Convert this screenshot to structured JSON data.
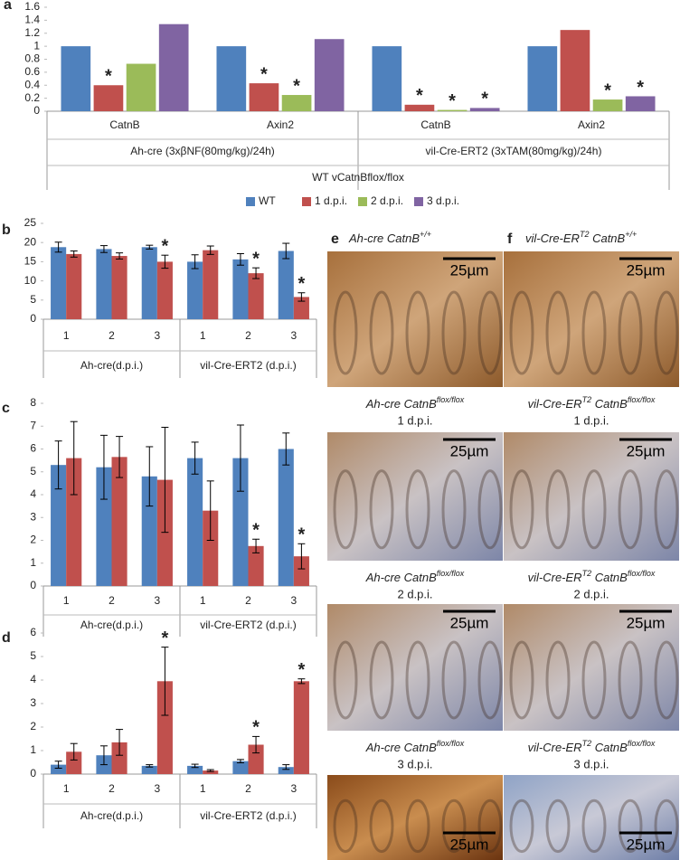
{
  "chart_data": [
    {
      "type": "bar",
      "panel": "a",
      "categories": [
        "CatnB",
        "Axin2",
        "CatnB",
        "Axin2"
      ],
      "group_labels": [
        "Ah-cre (3xβNF(80mg/kg)/24h)",
        "vil-Cre-ERT2 (3xTAM(80mg/kg)/24h)"
      ],
      "outer_label": "WT vCatnBflox/flox",
      "legend": "bottom",
      "ylim": [
        0,
        1.6
      ],
      "yticks": [
        0,
        0.2,
        0.4,
        0.6,
        0.8,
        1,
        1.2,
        1.4,
        1.6
      ],
      "series": [
        {
          "name": "WT",
          "color": "#4f81bd",
          "values": [
            1,
            1,
            1,
            1
          ],
          "significance": [
            null,
            null,
            null,
            null
          ]
        },
        {
          "name": "1 d.p.i.",
          "color": "#c0504d",
          "values": [
            0.4,
            0.43,
            0.1,
            1.25
          ],
          "significance": [
            "*",
            "*",
            "*",
            null
          ]
        },
        {
          "name": "2 d.p.i.",
          "color": "#9bbb59",
          "values": [
            0.73,
            0.25,
            0.02,
            0.18
          ],
          "significance": [
            null,
            "*",
            "*",
            "*"
          ]
        },
        {
          "name": "3 d.p.i.",
          "color": "#8064a2",
          "values": [
            1.34,
            1.11,
            0.05,
            0.23
          ],
          "significance": [
            null,
            null,
            "*",
            "*"
          ]
        }
      ]
    },
    {
      "type": "bar",
      "panel": "b",
      "categories": [
        "1",
        "2",
        "3",
        "1",
        "2",
        "3"
      ],
      "group_labels": [
        "Ah-cre(d.p.i.)",
        "vil-Cre-ERT2 (d.p.i.)"
      ],
      "ylim": [
        0,
        25
      ],
      "yticks": [
        0,
        5,
        10,
        15,
        20,
        25
      ],
      "series": [
        {
          "color": "#4f81bd",
          "values": [
            18.8,
            18.3,
            18.8,
            15,
            15.6,
            17.8
          ],
          "errors": [
            1.3,
            0.9,
            0.5,
            1.8,
            1.5,
            2
          ],
          "significance": [
            null,
            null,
            null,
            null,
            null,
            null
          ]
        },
        {
          "color": "#c0504d",
          "values": [
            17,
            16.5,
            15,
            18,
            12,
            5.8
          ],
          "errors": [
            0.8,
            0.8,
            1.7,
            1.1,
            1.4,
            1.1
          ],
          "significance": [
            null,
            null,
            "*",
            null,
            "*",
            "*"
          ]
        }
      ]
    },
    {
      "type": "bar",
      "panel": "c",
      "categories": [
        "1",
        "2",
        "3",
        "1",
        "2",
        "3"
      ],
      "group_labels": [
        "Ah-cre(d.p.i.)",
        "vil-Cre-ERT2 (d.p.i.)"
      ],
      "ylim": [
        0,
        8
      ],
      "yticks": [
        0,
        1,
        2,
        3,
        4,
        5,
        6,
        7,
        8
      ],
      "series": [
        {
          "color": "#4f81bd",
          "values": [
            5.3,
            5.2,
            4.8,
            5.6,
            5.6,
            6
          ],
          "errors": [
            1.05,
            1.4,
            1.3,
            0.7,
            1.45,
            0.7
          ],
          "significance": [
            null,
            null,
            null,
            null,
            null,
            null
          ]
        },
        {
          "color": "#c0504d",
          "values": [
            5.6,
            5.65,
            4.65,
            3.3,
            1.75,
            1.3
          ],
          "errors": [
            1.6,
            0.9,
            2.3,
            1.3,
            0.3,
            0.55
          ],
          "significance": [
            null,
            null,
            null,
            null,
            "*",
            "*"
          ]
        }
      ]
    },
    {
      "type": "bar",
      "panel": "d",
      "categories": [
        "1",
        "2",
        "3",
        "1",
        "2",
        "3"
      ],
      "group_labels": [
        "Ah-cre(d.p.i.)",
        "vil-Cre-ERT2 (d.p.i.)"
      ],
      "ylim": [
        0,
        6
      ],
      "yticks": [
        0,
        1,
        2,
        3,
        4,
        5,
        6
      ],
      "series": [
        {
          "color": "#4f81bd",
          "values": [
            0.4,
            0.8,
            0.35,
            0.35,
            0.55,
            0.3
          ],
          "errors": [
            0.15,
            0.4,
            0.05,
            0.07,
            0.07,
            0.1
          ],
          "significance": [
            null,
            null,
            null,
            null,
            null,
            null
          ]
        },
        {
          "color": "#c0504d",
          "values": [
            0.95,
            1.35,
            3.95,
            0.15,
            1.25,
            3.95
          ],
          "errors": [
            0.35,
            0.55,
            1.45,
            0.04,
            0.35,
            0.1
          ],
          "significance": [
            null,
            null,
            "*",
            null,
            "*",
            "*"
          ]
        }
      ]
    }
  ],
  "micrographs": {
    "scale_bar": "25µm",
    "columns": [
      {
        "letter": "e",
        "title": [
          {
            "t": "Ah-cre CatnB"
          },
          {
            "t": "+/+",
            "sup": true
          }
        ],
        "captions": [
          {
            "name": [
              {
                "t": "Ah-cre CatnB"
              },
              {
                "t": "flox/flox",
                "sup": true
              }
            ],
            "dpi": "1 d.p.i."
          },
          {
            "name": [
              {
                "t": "Ah-cre CatnB"
              },
              {
                "t": "flox/flox",
                "sup": true
              }
            ],
            "dpi": "2 d.p.i."
          },
          {
            "name": [
              {
                "t": "Ah-cre CatnB"
              },
              {
                "t": "flox/flox",
                "sup": true
              }
            ],
            "dpi": "3 d.p.i."
          }
        ]
      },
      {
        "letter": "f",
        "title": [
          {
            "t": "vil-Cre-ER"
          },
          {
            "t": "T2",
            "sup": true
          },
          {
            "t": " CatnB"
          },
          {
            "t": "+/+",
            "sup": true
          }
        ],
        "captions": [
          {
            "name": [
              {
                "t": "vil-Cre-ER"
              },
              {
                "t": "T2",
                "sup": true
              },
              {
                "t": " CatnB"
              },
              {
                "t": "flox/flox",
                "sup": true
              }
            ],
            "dpi": "1 d.p.i."
          },
          {
            "name": [
              {
                "t": "vil-Cre-ER"
              },
              {
                "t": "T2",
                "sup": true
              },
              {
                "t": " CatnB"
              },
              {
                "t": "flox/flox",
                "sup": true
              }
            ],
            "dpi": "2 d.p.i."
          },
          {
            "name": [
              {
                "t": "vil-Cre-ER"
              },
              {
                "t": "T2",
                "sup": true
              },
              {
                "t": " CatnB"
              },
              {
                "t": "flox/flox",
                "sup": true
              }
            ],
            "dpi": "3 d.p.i."
          }
        ]
      }
    ]
  }
}
